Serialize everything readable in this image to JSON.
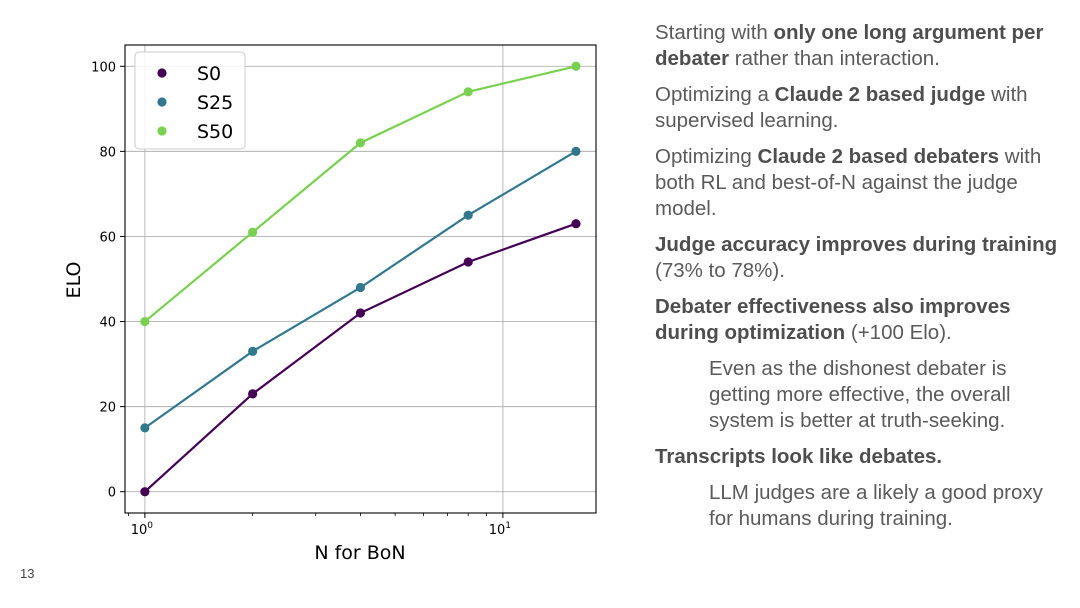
{
  "slide_number": "13",
  "chart_data": {
    "type": "line",
    "title": "",
    "xlabel": "N for BoN",
    "ylabel": "ELO",
    "x_scale": "log",
    "x": [
      1,
      2,
      4,
      8,
      16
    ],
    "xlim": [
      0.88,
      18.2
    ],
    "ylim": [
      -5,
      105
    ],
    "x_ticks": [
      {
        "value": 1,
        "base": "10",
        "exp": "0"
      },
      {
        "value": 10,
        "base": "10",
        "exp": "1"
      }
    ],
    "y_ticks": [
      0,
      20,
      40,
      60,
      80,
      100
    ],
    "grid": true,
    "legend_position": "top-left",
    "series": [
      {
        "name": "S0",
        "color": "#440154",
        "values": [
          0,
          23,
          42,
          54,
          63
        ]
      },
      {
        "name": "S25",
        "color": "#31788e",
        "values": [
          15,
          33,
          48,
          65,
          80
        ]
      },
      {
        "name": "S50",
        "color": "#7ad151",
        "values": [
          40,
          61,
          82,
          94,
          100
        ]
      }
    ]
  },
  "text_panel": {
    "paragraphs": [
      {
        "indent": false,
        "runs": [
          {
            "t": "Starting with "
          },
          {
            "t": "only one long argument per debater",
            "b": true
          },
          {
            "t": " rather than interaction."
          }
        ]
      },
      {
        "indent": false,
        "runs": [
          {
            "t": "Optimizing a "
          },
          {
            "t": "Claude 2 based judge",
            "b": true
          },
          {
            "t": " with supervised learning."
          }
        ]
      },
      {
        "indent": false,
        "runs": [
          {
            "t": "Optimizing "
          },
          {
            "t": "Claude 2 based debaters",
            "b": true
          },
          {
            "t": " with both RL and best-of-N against the judge model."
          }
        ]
      },
      {
        "indent": false,
        "runs": [
          {
            "t": "Judge accuracy improves during training",
            "b": true
          },
          {
            "t": " (73% to 78%)."
          }
        ]
      },
      {
        "indent": false,
        "runs": [
          {
            "t": "Debater effectiveness also improves during optimization",
            "b": true
          },
          {
            "t": " (+100 Elo)."
          }
        ]
      },
      {
        "indent": true,
        "runs": [
          {
            "t": "Even as the dishonest debater is getting more effective, the overall system is better at truth-seeking."
          }
        ]
      },
      {
        "indent": false,
        "runs": [
          {
            "t": "Transcripts look like debates.",
            "b": true
          }
        ]
      },
      {
        "indent": true,
        "runs": [
          {
            "t": "LLM judges are a likely a good proxy for humans during training."
          }
        ]
      }
    ]
  }
}
